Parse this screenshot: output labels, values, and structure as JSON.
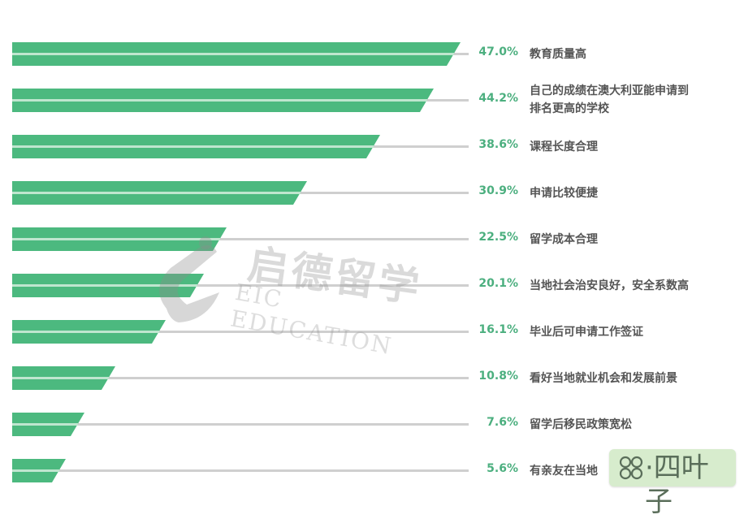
{
  "chart_data": {
    "type": "bar",
    "orientation": "horizontal",
    "title": "",
    "xlabel": "",
    "ylabel": "",
    "xlim": [
      0,
      50
    ],
    "grid": false,
    "legend": null,
    "categories": [
      "教育质量高",
      "自己的成绩在澳大利亚能申请到排名更高的学校",
      "课程长度合理",
      "申请比较便捷",
      "留学成本合理",
      "当地社会治安良好，安全系数高",
      "毕业后可申请工作签证",
      "看好当地就业机会和发展前景",
      "留学后移民政策宽松",
      "有亲友在当地"
    ],
    "values": [
      47.0,
      44.2,
      38.6,
      30.9,
      22.5,
      20.1,
      16.1,
      10.8,
      7.6,
      5.6
    ],
    "value_labels": [
      "47.0%",
      "44.2%",
      "38.6%",
      "30.9%",
      "22.5%",
      "20.1%",
      "16.1%",
      "10.8%",
      "7.6%",
      "5.6%"
    ],
    "bar_color": "#4cb97f",
    "value_label_color": "#4caf7f"
  },
  "rows": [
    {
      "pct": "47.0%",
      "label": "教育质量高"
    },
    {
      "pct": "44.2%",
      "label_line1": "自己的成绩在澳大利亚能申请到",
      "label_line2": "排名更高的学校"
    },
    {
      "pct": "38.6%",
      "label": "课程长度合理"
    },
    {
      "pct": "30.9%",
      "label": "申请比较便捷"
    },
    {
      "pct": "22.5%",
      "label": "留学成本合理"
    },
    {
      "pct": "20.1%",
      "label": "当地社会治安良好，安全系数高"
    },
    {
      "pct": "16.1%",
      "label": "毕业后可申请工作签证"
    },
    {
      "pct": "10.8%",
      "label": "看好当地就业机会和发展前景"
    },
    {
      "pct": "7.6%",
      "label": "留学后移民政策宽松"
    },
    {
      "pct": "5.6%",
      "label": "有亲友在当地"
    }
  ],
  "watermark": {
    "cn": "启德留学",
    "en": "EIC EDUCATION"
  },
  "badge": {
    "text": "·四叶子"
  }
}
